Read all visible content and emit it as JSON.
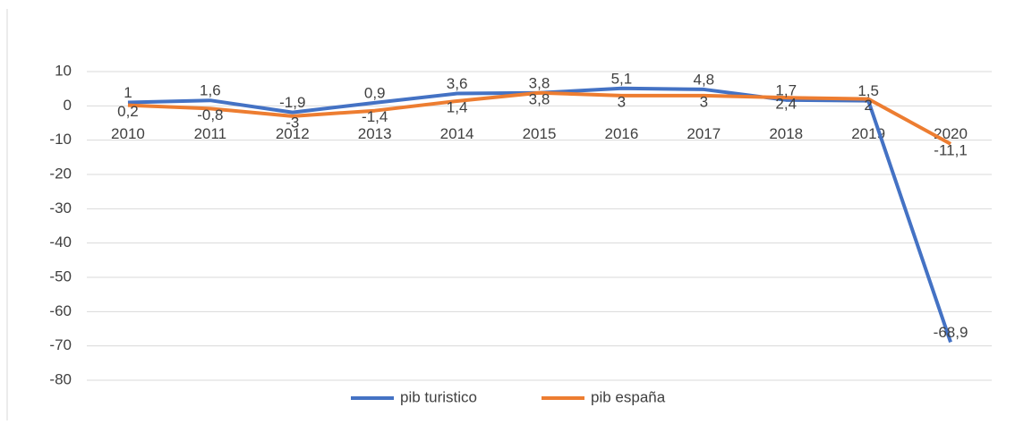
{
  "chart_data": {
    "type": "line",
    "categories": [
      "2010",
      "2011",
      "2012",
      "2013",
      "2014",
      "2015",
      "2016",
      "2017",
      "2018",
      "2019",
      "2020"
    ],
    "series": [
      {
        "name": "pib turistico",
        "color": "#4472c4",
        "values": [
          1,
          1.6,
          -1.9,
          0.9,
          3.6,
          3.8,
          5.1,
          4.8,
          1.7,
          1.5,
          -68.9
        ],
        "value_labels": [
          "1",
          "1,6",
          "-1,9",
          "0,9",
          "3,6",
          "3,8",
          "5,1",
          "4,8",
          "1,7",
          "1,5",
          "-68,9"
        ]
      },
      {
        "name": "pib españa",
        "color": "#ed7d31",
        "values": [
          0.2,
          -0.8,
          -3,
          -1.4,
          1.4,
          3.8,
          3,
          3,
          2.4,
          2,
          -11.1
        ],
        "value_labels": [
          "0,2",
          "-0,8",
          "-3",
          "-1,4",
          "1,4",
          "3,8",
          "3",
          "3",
          "2,4",
          "2",
          "-11,1"
        ]
      }
    ],
    "ylim": [
      -80,
      10
    ],
    "yticks": [
      -80,
      -70,
      -60,
      -50,
      -40,
      -30,
      -20,
      -10,
      0,
      10
    ],
    "grid": true,
    "legend": "bottom"
  }
}
